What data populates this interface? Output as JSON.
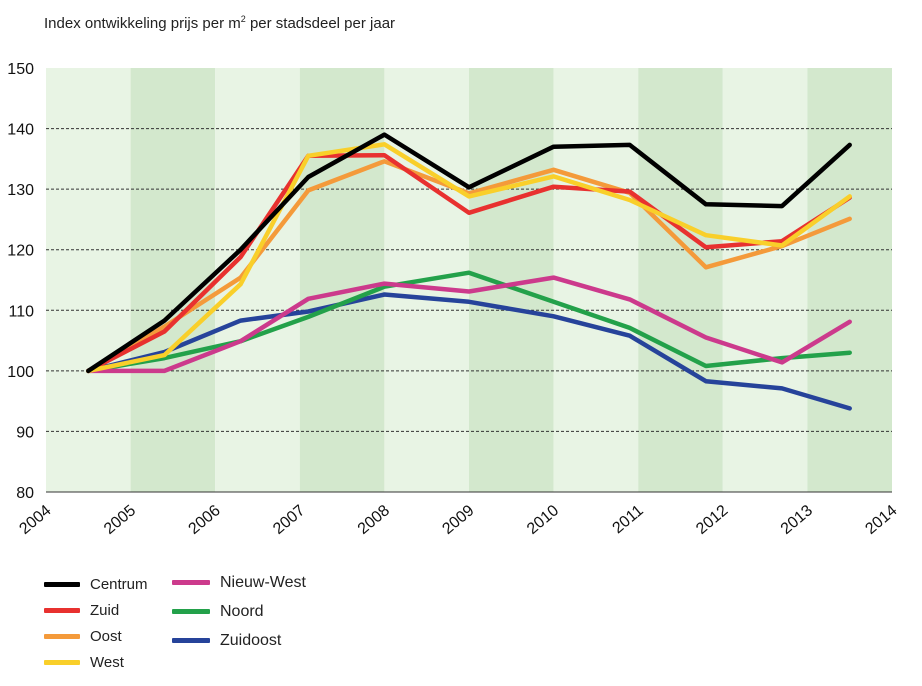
{
  "chart_data": {
    "type": "line",
    "title": "Index ontwikkeling prijs per m² per stadsdeel per jaar",
    "title_main": "Index ontwikkeling prijs per m",
    "title_sup": "2",
    "title_rest": " per stadsdeel per jaar",
    "xlabel": "",
    "ylabel": "",
    "ylim": [
      80,
      150
    ],
    "yticks": [
      80,
      90,
      100,
      110,
      120,
      130,
      140,
      150
    ],
    "xticks": [
      "2004",
      "2005",
      "2006",
      "2007",
      "2008",
      "2009",
      "2010",
      "2011",
      "2012",
      "2013",
      "2014"
    ],
    "x": [
      2004.5,
      2005.4,
      2006.3,
      2007.1,
      2008.0,
      2009.0,
      2010.0,
      2010.9,
      2011.8,
      2012.7,
      2013.5
    ],
    "grid": "horizontal dashed",
    "legend_position": "bottom-left",
    "series": [
      {
        "name": "Centrum",
        "color": "#000000",
        "values": [
          100,
          108.3,
          120,
          132,
          139,
          130.3,
          137,
          137.3,
          127.5,
          127.2,
          137.3
        ]
      },
      {
        "name": "Zuid",
        "color": "#e8312f",
        "values": [
          100,
          106.5,
          118.8,
          135.5,
          135.6,
          126.1,
          130.4,
          129.6,
          120.4,
          121.4,
          128.6
        ]
      },
      {
        "name": "Oost",
        "color": "#f49a3a",
        "values": [
          100,
          107.3,
          115.4,
          129.8,
          134.6,
          129.3,
          133.2,
          129.4,
          117.1,
          120.6,
          125.1
        ]
      },
      {
        "name": "West",
        "color": "#f9cf2a",
        "values": [
          100,
          102.6,
          114.3,
          135.5,
          137.4,
          128.8,
          132.1,
          128.2,
          122.4,
          120.7,
          128.8
        ]
      },
      {
        "name": "Nieuw-West",
        "color": "#cc3a8c",
        "values": [
          100,
          100,
          104.9,
          111.9,
          114.4,
          113.1,
          115.4,
          111.8,
          105.5,
          101.4,
          108.1
        ]
      },
      {
        "name": "Noord",
        "color": "#23a14a",
        "values": [
          100,
          102.1,
          104.9,
          108.9,
          113.9,
          116.2,
          111.4,
          107.1,
          100.8,
          102.1,
          103
        ]
      },
      {
        "name": "Zuidoost",
        "color": "#26439a",
        "values": [
          100,
          103.1,
          108.3,
          109.8,
          112.6,
          111.4,
          109,
          105.8,
          98.3,
          97.1,
          93.8
        ]
      }
    ],
    "colors": {
      "band_light": "#e8f4e4",
      "band_dark": "#d3e8cd",
      "gridline": "#333333"
    }
  },
  "legend": {
    "col1": [
      {
        "label": "Centrum",
        "color": "#000000"
      },
      {
        "label": "Zuid",
        "color": "#e8312f"
      },
      {
        "label": "Oost",
        "color": "#f49a3a"
      },
      {
        "label": "West",
        "color": "#f9cf2a"
      }
    ],
    "col2": [
      {
        "label": "Nieuw-West",
        "color": "#cc3a8c"
      },
      {
        "label": "Noord",
        "color": "#23a14a"
      },
      {
        "label": "Zuidoost",
        "color": "#26439a"
      }
    ]
  }
}
